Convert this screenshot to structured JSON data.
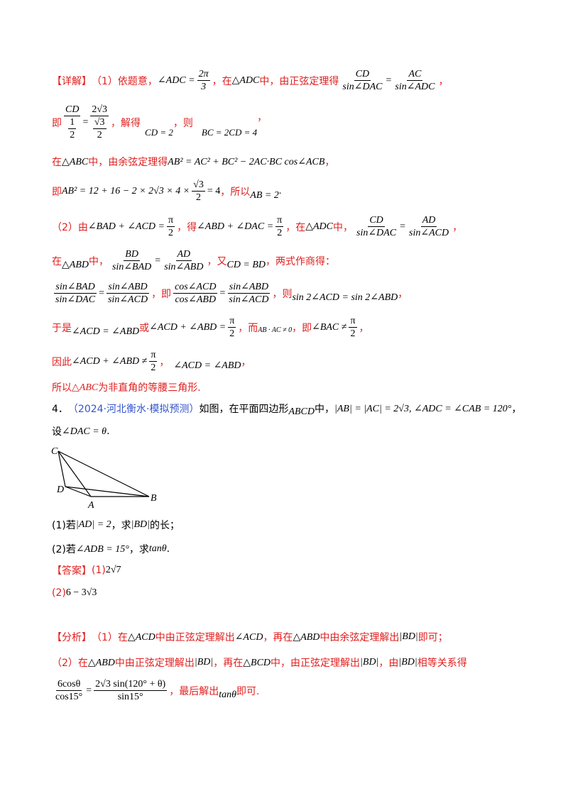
{
  "s1": {
    "tag": "【详解】",
    "part1": "（1）依题意，",
    "angle_adc": "∠ADC =",
    "two_pi": "2π",
    "three": "3",
    "in_tri": "，在",
    "tri_adc": "△ADC",
    "by_sine": "中，由正弦定理得",
    "cd": "CD",
    "sin_dac": "sin∠DAC",
    "eq": "=",
    "ac": "AC",
    "sin_adc": "sin∠ADC",
    "comma": "，"
  },
  "s2": {
    "ji": "即",
    "cd": "CD",
    "one": "1",
    "two": "2",
    "eq": "=",
    "two_sqrt3": "2√3",
    "sqrt3": "√3",
    "two_b": "2",
    "solve": "，解得",
    "cd2": "CD = 2",
    "then": "，则",
    "bc": "BC = 2CD = 4",
    "comma": "，"
  },
  "s3": {
    "text1": "在",
    "tri": "△ABC",
    "text2": "中，由余弦定理得",
    "formula": "AB² = AC² + BC² − 2AC·BC cos∠ACB",
    "comma": "，"
  },
  "s4": {
    "ji": "即",
    "formula": "AB² = 12 + 16 − 2 × 2√3 × 4 ×",
    "sqrt3": "√3",
    "two": "2",
    "eq4": "= 4",
    "so": "，所以",
    "ab2": "AB = 2",
    "dot": "."
  },
  "s5": {
    "part2": "（2）由",
    "expr1": "∠BAD + ∠ACD =",
    "pi": "π",
    "two": "2",
    "de": "，得",
    "expr2": "∠ABD + ∠DAC =",
    "in": "，在",
    "tri": "△ADC",
    "zhong": "中，",
    "cd": "CD",
    "sin_dac": "sin∠DAC",
    "eq": "=",
    "ad": "AD",
    "sin_acd": "sin∠ACD",
    "comma": "，"
  },
  "s6": {
    "in": "在",
    "tri": "△ABD",
    "zhong": "中，",
    "bd": "BD",
    "sin_bad": "sin∠BAD",
    "eq": "=",
    "ad": "AD",
    "sin_abd": "sin∠ABD",
    "you": "，又",
    "cdbd": "CD = BD",
    "tail": "，两式作商得："
  },
  "s7": {
    "n1": "sin∠BAD",
    "d1": "sin∠DAC",
    "eq": "=",
    "n2": "sin∠ABD",
    "d2": "sin∠ACD",
    "ji": "，即",
    "n3": "cos∠ACD",
    "d3": "cos∠ABD",
    "n4": "sin∠ABD",
    "d4": "sin∠ACD",
    "ze": "，则",
    "res": "sin 2∠ACD = sin 2∠ABD",
    "comma": "，"
  },
  "s8": {
    "yushi": "于是",
    "e1": "∠ACD = ∠ABD",
    "huo": "或",
    "e2": "∠ACD + ∠ABD =",
    "pi": "π",
    "two": "2",
    "er": "，而",
    "vec": "AB · AC ≠ 0",
    "ji": "，即",
    "e3": "∠BAC ≠",
    "comma": "，"
  },
  "s9": {
    "yinci": "因此",
    "e1": "∠ACD + ∠ABD ≠",
    "pi": "π",
    "two": "2",
    "comma": "，",
    "e2": "∠ACD = ∠ABD",
    "comma2": "，"
  },
  "s10": {
    "text": "所以",
    "tri": "△ABC",
    "tail": "为非直角的等腰三角形."
  },
  "q4": {
    "num": "4．",
    "source": "（2024·河北衡水·模拟预测）",
    "t1": "如图，在平面四边形",
    "abcd": "ABCD",
    "t2": "中，",
    "cond": "|AB| = |AC| = 2√3, ∠ADC = ∠CAB = 120°",
    "comma": "，",
    "t3": "设",
    "theta": "∠DAC = θ",
    "dot": "."
  },
  "figure": {
    "labels": [
      "C",
      "D",
      "A",
      "B"
    ]
  },
  "sub1": {
    "label": "(1)若",
    "ad": "|AD| = 2",
    "t": "，求",
    "bd": "|BD|",
    "tail": "的长；"
  },
  "sub2": {
    "label": "(2)若",
    "adb": "∠ADB = 15°",
    "t": "，求",
    "tan": "tanθ",
    "dot": "."
  },
  "answer": {
    "tag": "【答案】",
    "a1_label": "(1)",
    "a1": "2√7",
    "a2_label": "(2)",
    "a2": "6 − 3√3"
  },
  "analysis": {
    "tag": "【分析】",
    "l1a": "（1）在",
    "l1tri": "△ACD",
    "l1b": "中由正弦定理解出",
    "l1acd": "∠ACD",
    "l1c": "，再在",
    "l1tri2": "△ABD",
    "l1d": "中由余弦定理解出",
    "l1bd": "|BD|",
    "l1e": "即可；",
    "l2a": "（2）在",
    "l2tri": "△ABD",
    "l2b": "中由正弦定理解出",
    "l2bd": "|BD|",
    "l2c": "，再在",
    "l2tri2": "△BCD",
    "l2d": "中，由正弦定理解出",
    "l2bd2": "|BD|",
    "l2e": "，由",
    "l2bd3": "|BD|",
    "l2f": "相等关系得",
    "l3n1": "6cosθ",
    "l3d1": "cos15°",
    "l3eq": "=",
    "l3n2": "2√3 sin(120° + θ)",
    "l3d2": "sin15°",
    "l3a": "，最后解出",
    "l3tan": "tanθ",
    "l3b": "即可."
  }
}
